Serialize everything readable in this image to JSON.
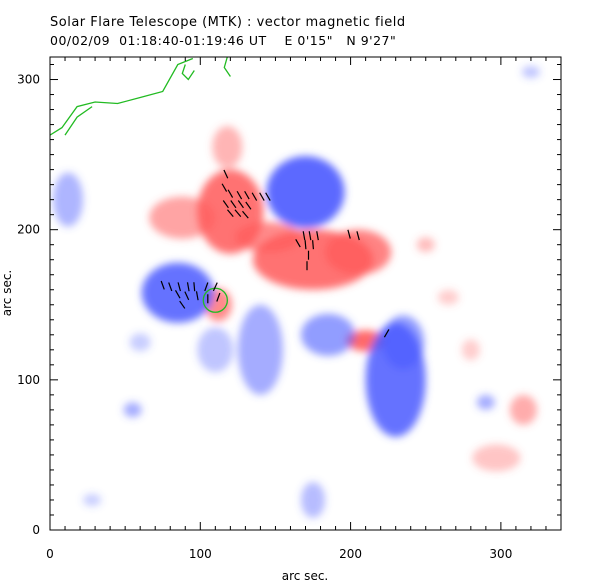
{
  "header": {
    "title": "Solar Flare Telescope (MTK) : vector magnetic field",
    "subtitle": "00/02/09  01:18:40-01:19:46 UT    E 0'15\"   N 9'27\""
  },
  "chart_data": {
    "type": "heatmap",
    "xlabel": "arc sec.",
    "ylabel": "arc sec.",
    "xlim": [
      0,
      340
    ],
    "ylim": [
      0,
      315
    ],
    "xticks": [
      0,
      100,
      200,
      300
    ],
    "yticks": [
      0,
      100,
      200,
      300
    ],
    "minor_tick_step": 10,
    "colors": {
      "positive": "#ff5a5a",
      "negative": "#4a5aff",
      "contour": "#22bb22",
      "vector": "#000000"
    },
    "positive_regions": [
      {
        "x": 120,
        "y": 212,
        "rx": 22,
        "ry": 28,
        "o": 0.85
      },
      {
        "x": 118,
        "y": 255,
        "rx": 10,
        "ry": 14,
        "o": 0.45
      },
      {
        "x": 145,
        "y": 195,
        "rx": 22,
        "ry": 10,
        "o": 0.7
      },
      {
        "x": 175,
        "y": 180,
        "rx": 40,
        "ry": 20,
        "o": 0.85
      },
      {
        "x": 205,
        "y": 185,
        "rx": 22,
        "ry": 15,
        "o": 0.75
      },
      {
        "x": 88,
        "y": 208,
        "rx": 22,
        "ry": 14,
        "o": 0.55
      },
      {
        "x": 210,
        "y": 126,
        "rx": 13,
        "ry": 7,
        "o": 0.9
      },
      {
        "x": 112,
        "y": 150,
        "rx": 9,
        "ry": 11,
        "o": 0.7
      },
      {
        "x": 315,
        "y": 80,
        "rx": 9,
        "ry": 10,
        "o": 0.5
      },
      {
        "x": 297,
        "y": 48,
        "rx": 16,
        "ry": 9,
        "o": 0.35
      },
      {
        "x": 250,
        "y": 190,
        "rx": 6,
        "ry": 5,
        "o": 0.4
      },
      {
        "x": 280,
        "y": 120,
        "rx": 6,
        "ry": 7,
        "o": 0.3
      },
      {
        "x": 265,
        "y": 155,
        "rx": 7,
        "ry": 5,
        "o": 0.3
      }
    ],
    "negative_regions": [
      {
        "x": 85,
        "y": 158,
        "rx": 24,
        "ry": 20,
        "o": 0.85
      },
      {
        "x": 170,
        "y": 225,
        "rx": 26,
        "ry": 24,
        "o": 0.9
      },
      {
        "x": 230,
        "y": 100,
        "rx": 20,
        "ry": 38,
        "o": 0.85
      },
      {
        "x": 235,
        "y": 125,
        "rx": 14,
        "ry": 18,
        "o": 0.6
      },
      {
        "x": 185,
        "y": 130,
        "rx": 18,
        "ry": 14,
        "o": 0.6
      },
      {
        "x": 140,
        "y": 120,
        "rx": 15,
        "ry": 30,
        "o": 0.5
      },
      {
        "x": 110,
        "y": 120,
        "rx": 12,
        "ry": 15,
        "o": 0.35
      },
      {
        "x": 12,
        "y": 220,
        "rx": 10,
        "ry": 18,
        "o": 0.45
      },
      {
        "x": 55,
        "y": 80,
        "rx": 6,
        "ry": 5,
        "o": 0.5
      },
      {
        "x": 175,
        "y": 20,
        "rx": 8,
        "ry": 12,
        "o": 0.4
      },
      {
        "x": 290,
        "y": 85,
        "rx": 6,
        "ry": 5,
        "o": 0.5
      },
      {
        "x": 320,
        "y": 305,
        "rx": 6,
        "ry": 4,
        "o": 0.35
      },
      {
        "x": 28,
        "y": 20,
        "rx": 6,
        "ry": 4,
        "o": 0.3
      },
      {
        "x": 60,
        "y": 125,
        "rx": 7,
        "ry": 6,
        "o": 0.3
      }
    ],
    "contours": [
      {
        "points": [
          [
            0,
            263
          ],
          [
            8,
            268
          ],
          [
            18,
            282
          ],
          [
            30,
            285
          ],
          [
            45,
            284
          ],
          [
            60,
            288
          ],
          [
            75,
            292
          ],
          [
            85,
            310
          ],
          [
            95,
            314
          ]
        ]
      },
      {
        "points": [
          [
            10,
            263
          ],
          [
            18,
            275
          ],
          [
            28,
            282
          ]
        ]
      },
      {
        "points": [
          [
            90,
            310
          ],
          [
            88,
            304
          ],
          [
            92,
            300
          ],
          [
            96,
            306
          ]
        ]
      },
      {
        "points": [
          [
            118,
            315
          ],
          [
            116,
            308
          ],
          [
            120,
            302
          ]
        ]
      },
      {
        "circle": [
          110,
          153,
          8
        ]
      }
    ],
    "vectors": [
      {
        "x": 117,
        "y": 237,
        "a": 115
      },
      {
        "x": 116,
        "y": 228,
        "a": 120
      },
      {
        "x": 120,
        "y": 224,
        "a": 120
      },
      {
        "x": 126,
        "y": 223,
        "a": 120
      },
      {
        "x": 131,
        "y": 223,
        "a": 120
      },
      {
        "x": 136,
        "y": 222,
        "a": 120
      },
      {
        "x": 141,
        "y": 222,
        "a": 120
      },
      {
        "x": 145,
        "y": 222,
        "a": 120
      },
      {
        "x": 117,
        "y": 217,
        "a": 125
      },
      {
        "x": 122,
        "y": 217,
        "a": 125
      },
      {
        "x": 127,
        "y": 217,
        "a": 125
      },
      {
        "x": 132,
        "y": 216,
        "a": 125
      },
      {
        "x": 120,
        "y": 211,
        "a": 130
      },
      {
        "x": 125,
        "y": 211,
        "a": 130
      },
      {
        "x": 130,
        "y": 210,
        "a": 130
      },
      {
        "x": 169,
        "y": 196,
        "a": 100
      },
      {
        "x": 173,
        "y": 196,
        "a": 100
      },
      {
        "x": 178,
        "y": 196,
        "a": 100
      },
      {
        "x": 199,
        "y": 197,
        "a": 105
      },
      {
        "x": 205,
        "y": 196,
        "a": 105
      },
      {
        "x": 165,
        "y": 191,
        "a": 120
      },
      {
        "x": 170,
        "y": 190,
        "a": 95
      },
      {
        "x": 175,
        "y": 190,
        "a": 95
      },
      {
        "x": 172,
        "y": 183,
        "a": 90
      },
      {
        "x": 171,
        "y": 176,
        "a": 90
      },
      {
        "x": 75,
        "y": 163,
        "a": 110
      },
      {
        "x": 80,
        "y": 162,
        "a": 110
      },
      {
        "x": 86,
        "y": 162,
        "a": 105
      },
      {
        "x": 92,
        "y": 162,
        "a": 100
      },
      {
        "x": 96,
        "y": 162,
        "a": 95
      },
      {
        "x": 104,
        "y": 162,
        "a": 70
      },
      {
        "x": 110,
        "y": 162,
        "a": 65
      },
      {
        "x": 85,
        "y": 157,
        "a": 120
      },
      {
        "x": 91,
        "y": 156,
        "a": 115
      },
      {
        "x": 98,
        "y": 156,
        "a": 100
      },
      {
        "x": 88,
        "y": 150,
        "a": 125
      },
      {
        "x": 105,
        "y": 154,
        "a": 90
      },
      {
        "x": 112,
        "y": 155,
        "a": 70
      },
      {
        "x": 224,
        "y": 131,
        "a": 60
      }
    ]
  }
}
